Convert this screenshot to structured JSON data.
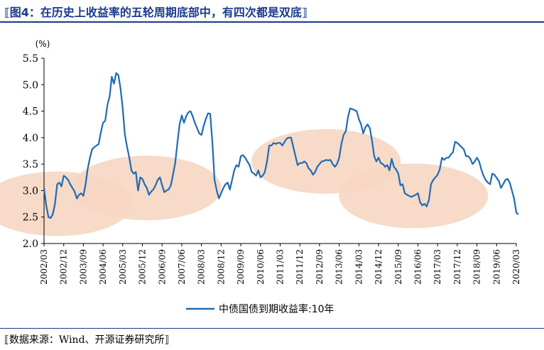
{
  "figure": {
    "title": "⟦图4：在历史上收益率的五轮周期底部中，有四次都是双底⟧",
    "source": "⟦数据来源：Wind、开源证券研究所⟧"
  },
  "chart_data": {
    "type": "line",
    "title": "",
    "xlabel": "",
    "ylabel": "(%)",
    "ylim": [
      2.0,
      5.5
    ],
    "yticks": [
      "5.5",
      "5.0",
      "4.5",
      "4.0",
      "3.5",
      "3.0",
      "2.5",
      "2.0"
    ],
    "xticks": [
      "2002/03",
      "2002/12",
      "2003/09",
      "2004/06",
      "2005/03",
      "2005/12",
      "2006/09",
      "2007/06",
      "2008/03",
      "2008/12",
      "2009/09",
      "2010/06",
      "2011/03",
      "2011/12",
      "2012/09",
      "2013/06",
      "2014/03",
      "2014/12",
      "2015/09",
      "2016/06",
      "2017/03",
      "2017/12",
      "2018/09",
      "2019/06",
      "2020/03"
    ],
    "grid": false,
    "legend_position": "bottom",
    "series": [
      {
        "name": "中债国债到期收益率:10年",
        "color": "#1f6bb5",
        "points": [
          [
            "2002-03",
            3.05
          ],
          [
            "2002-04",
            2.72
          ],
          [
            "2002-05",
            2.5
          ],
          [
            "2002-06",
            2.48
          ],
          [
            "2002-07",
            2.55
          ],
          [
            "2002-08",
            2.75
          ],
          [
            "2002-09",
            3.12
          ],
          [
            "2002-10",
            3.15
          ],
          [
            "2002-11",
            3.08
          ],
          [
            "2002-12",
            3.28
          ],
          [
            "2003-01",
            3.25
          ],
          [
            "2003-02",
            3.2
          ],
          [
            "2003-03",
            3.12
          ],
          [
            "2003-04",
            3.05
          ],
          [
            "2003-05",
            2.98
          ],
          [
            "2003-06",
            2.85
          ],
          [
            "2003-07",
            2.92
          ],
          [
            "2003-08",
            2.95
          ],
          [
            "2003-09",
            2.9
          ],
          [
            "2003-10",
            3.12
          ],
          [
            "2003-11",
            3.42
          ],
          [
            "2003-12",
            3.62
          ],
          [
            "2004-01",
            3.78
          ],
          [
            "2004-02",
            3.82
          ],
          [
            "2004-03",
            3.85
          ],
          [
            "2004-04",
            3.88
          ],
          [
            "2004-05",
            4.1
          ],
          [
            "2004-06",
            4.28
          ],
          [
            "2004-07",
            4.32
          ],
          [
            "2004-08",
            4.62
          ],
          [
            "2004-09",
            4.78
          ],
          [
            "2004-10",
            5.15
          ],
          [
            "2004-11",
            5.02
          ],
          [
            "2004-12",
            5.22
          ],
          [
            "2005-01",
            5.18
          ],
          [
            "2005-02",
            4.92
          ],
          [
            "2005-03",
            4.55
          ],
          [
            "2005-04",
            4.05
          ],
          [
            "2005-05",
            3.82
          ],
          [
            "2005-06",
            3.62
          ],
          [
            "2005-07",
            3.38
          ],
          [
            "2005-08",
            3.32
          ],
          [
            "2005-09",
            3.35
          ],
          [
            "2005-10",
            3.0
          ],
          [
            "2005-11",
            3.25
          ],
          [
            "2005-12",
            3.22
          ],
          [
            "2006-01",
            3.12
          ],
          [
            "2006-02",
            3.05
          ],
          [
            "2006-03",
            2.92
          ],
          [
            "2006-04",
            2.98
          ],
          [
            "2006-05",
            3.02
          ],
          [
            "2006-06",
            3.1
          ],
          [
            "2006-07",
            3.2
          ],
          [
            "2006-08",
            3.25
          ],
          [
            "2006-09",
            3.1
          ],
          [
            "2006-10",
            2.97
          ],
          [
            "2006-11",
            3.0
          ],
          [
            "2006-12",
            3.02
          ],
          [
            "2007-01",
            3.1
          ],
          [
            "2007-02",
            3.3
          ],
          [
            "2007-03",
            3.52
          ],
          [
            "2007-04",
            3.9
          ],
          [
            "2007-05",
            4.25
          ],
          [
            "2007-06",
            4.42
          ],
          [
            "2007-07",
            4.28
          ],
          [
            "2007-08",
            4.4
          ],
          [
            "2007-09",
            4.48
          ],
          [
            "2007-10",
            4.5
          ],
          [
            "2007-11",
            4.4
          ],
          [
            "2007-12",
            4.28
          ],
          [
            "2008-01",
            4.18
          ],
          [
            "2008-02",
            4.08
          ],
          [
            "2008-03",
            4.05
          ],
          [
            "2008-04",
            4.22
          ],
          [
            "2008-05",
            4.35
          ],
          [
            "2008-06",
            4.46
          ],
          [
            "2008-07",
            4.45
          ],
          [
            "2008-08",
            3.9
          ],
          [
            "2008-09",
            3.2
          ],
          [
            "2008-10",
            3.0
          ],
          [
            "2008-11",
            2.85
          ],
          [
            "2008-12",
            2.95
          ],
          [
            "2009-01",
            3.05
          ],
          [
            "2009-02",
            3.12
          ],
          [
            "2009-03",
            3.15
          ],
          [
            "2009-04",
            3.02
          ],
          [
            "2009-05",
            3.2
          ],
          [
            "2009-06",
            3.38
          ],
          [
            "2009-07",
            3.48
          ],
          [
            "2009-08",
            3.45
          ],
          [
            "2009-09",
            3.65
          ],
          [
            "2009-10",
            3.67
          ],
          [
            "2009-11",
            3.62
          ],
          [
            "2009-12",
            3.55
          ],
          [
            "2010-01",
            3.48
          ],
          [
            "2010-02",
            3.35
          ],
          [
            "2010-03",
            3.32
          ],
          [
            "2010-04",
            3.28
          ],
          [
            "2010-05",
            3.38
          ],
          [
            "2010-06",
            3.25
          ],
          [
            "2010-07",
            3.28
          ],
          [
            "2010-08",
            3.35
          ],
          [
            "2010-09",
            3.55
          ],
          [
            "2010-10",
            3.85
          ],
          [
            "2010-11",
            3.85
          ],
          [
            "2010-12",
            3.9
          ],
          [
            "2011-01",
            3.88
          ],
          [
            "2011-02",
            3.9
          ],
          [
            "2011-03",
            3.9
          ],
          [
            "2011-04",
            3.85
          ],
          [
            "2011-05",
            3.92
          ],
          [
            "2011-06",
            3.98
          ],
          [
            "2011-07",
            4.0
          ],
          [
            "2011-08",
            4.0
          ],
          [
            "2011-09",
            3.82
          ],
          [
            "2011-10",
            3.65
          ],
          [
            "2011-11",
            3.48
          ],
          [
            "2011-12",
            3.52
          ],
          [
            "2012-01",
            3.52
          ],
          [
            "2012-02",
            3.55
          ],
          [
            "2012-03",
            3.52
          ],
          [
            "2012-04",
            3.42
          ],
          [
            "2012-05",
            3.38
          ],
          [
            "2012-06",
            3.3
          ],
          [
            "2012-07",
            3.35
          ],
          [
            "2012-08",
            3.45
          ],
          [
            "2012-09",
            3.5
          ],
          [
            "2012-10",
            3.55
          ],
          [
            "2012-11",
            3.56
          ],
          [
            "2012-12",
            3.58
          ],
          [
            "2013-01",
            3.57
          ],
          [
            "2013-02",
            3.58
          ],
          [
            "2013-03",
            3.5
          ],
          [
            "2013-04",
            3.45
          ],
          [
            "2013-05",
            3.5
          ],
          [
            "2013-06",
            3.62
          ],
          [
            "2013-07",
            3.88
          ],
          [
            "2013-08",
            4.05
          ],
          [
            "2013-09",
            4.12
          ],
          [
            "2013-10",
            4.38
          ],
          [
            "2013-11",
            4.55
          ],
          [
            "2013-12",
            4.54
          ],
          [
            "2014-01",
            4.52
          ],
          [
            "2014-02",
            4.5
          ],
          [
            "2014-03",
            4.35
          ],
          [
            "2014-04",
            4.25
          ],
          [
            "2014-05",
            4.08
          ],
          [
            "2014-06",
            4.2
          ],
          [
            "2014-07",
            4.25
          ],
          [
            "2014-08",
            4.18
          ],
          [
            "2014-09",
            3.95
          ],
          [
            "2014-10",
            3.65
          ],
          [
            "2014-11",
            3.55
          ],
          [
            "2014-12",
            3.62
          ],
          [
            "2015-01",
            3.52
          ],
          [
            "2015-02",
            3.5
          ],
          [
            "2015-03",
            3.45
          ],
          [
            "2015-04",
            3.48
          ],
          [
            "2015-05",
            3.38
          ],
          [
            "2015-06",
            3.6
          ],
          [
            "2015-07",
            3.45
          ],
          [
            "2015-08",
            3.4
          ],
          [
            "2015-09",
            3.32
          ],
          [
            "2015-10",
            3.1
          ],
          [
            "2015-11",
            3.12
          ],
          [
            "2015-12",
            2.95
          ],
          [
            "2016-01",
            2.92
          ],
          [
            "2016-02",
            2.9
          ],
          [
            "2016-03",
            2.88
          ],
          [
            "2016-04",
            2.9
          ],
          [
            "2016-05",
            2.92
          ],
          [
            "2016-06",
            2.95
          ],
          [
            "2016-07",
            2.78
          ],
          [
            "2016-08",
            2.72
          ],
          [
            "2016-09",
            2.75
          ],
          [
            "2016-10",
            2.7
          ],
          [
            "2016-11",
            2.82
          ],
          [
            "2016-12",
            3.12
          ],
          [
            "2017-01",
            3.2
          ],
          [
            "2017-02",
            3.25
          ],
          [
            "2017-03",
            3.3
          ],
          [
            "2017-04",
            3.4
          ],
          [
            "2017-05",
            3.62
          ],
          [
            "2017-06",
            3.58
          ],
          [
            "2017-07",
            3.62
          ],
          [
            "2017-08",
            3.62
          ],
          [
            "2017-09",
            3.68
          ],
          [
            "2017-10",
            3.72
          ],
          [
            "2017-11",
            3.92
          ],
          [
            "2017-12",
            3.9
          ],
          [
            "2018-01",
            3.86
          ],
          [
            "2018-02",
            3.82
          ],
          [
            "2018-03",
            3.78
          ],
          [
            "2018-04",
            3.65
          ],
          [
            "2018-05",
            3.65
          ],
          [
            "2018-06",
            3.6
          ],
          [
            "2018-07",
            3.5
          ],
          [
            "2018-08",
            3.55
          ],
          [
            "2018-09",
            3.62
          ],
          [
            "2018-10",
            3.55
          ],
          [
            "2018-11",
            3.4
          ],
          [
            "2018-12",
            3.28
          ],
          [
            "2019-01",
            3.2
          ],
          [
            "2019-02",
            3.15
          ],
          [
            "2019-03",
            3.12
          ],
          [
            "2019-04",
            3.32
          ],
          [
            "2019-05",
            3.3
          ],
          [
            "2019-06",
            3.24
          ],
          [
            "2019-07",
            3.18
          ],
          [
            "2019-08",
            3.05
          ],
          [
            "2019-09",
            3.12
          ],
          [
            "2019-10",
            3.2
          ],
          [
            "2019-11",
            3.22
          ],
          [
            "2019-12",
            3.15
          ],
          [
            "2020-01",
            3.0
          ],
          [
            "2020-02",
            2.85
          ],
          [
            "2020-03",
            2.58
          ],
          [
            "2020-04",
            2.55
          ]
        ]
      }
    ],
    "highlights": [
      {
        "center_x": "2002-09",
        "center_y": 2.75,
        "span_months": 11,
        "span_y": 1.22
      },
      {
        "center_x": "2006-02",
        "center_y": 3.05,
        "span_months": 11,
        "span_y": 1.22
      },
      {
        "center_x": "2012-12",
        "center_y": 3.55,
        "span_months": 11,
        "span_y": 1.22
      },
      {
        "center_x": "2016-04",
        "center_y": 2.9,
        "span_months": 11,
        "span_y": 1.22
      }
    ],
    "highlight_color": "#f6d6c2"
  }
}
